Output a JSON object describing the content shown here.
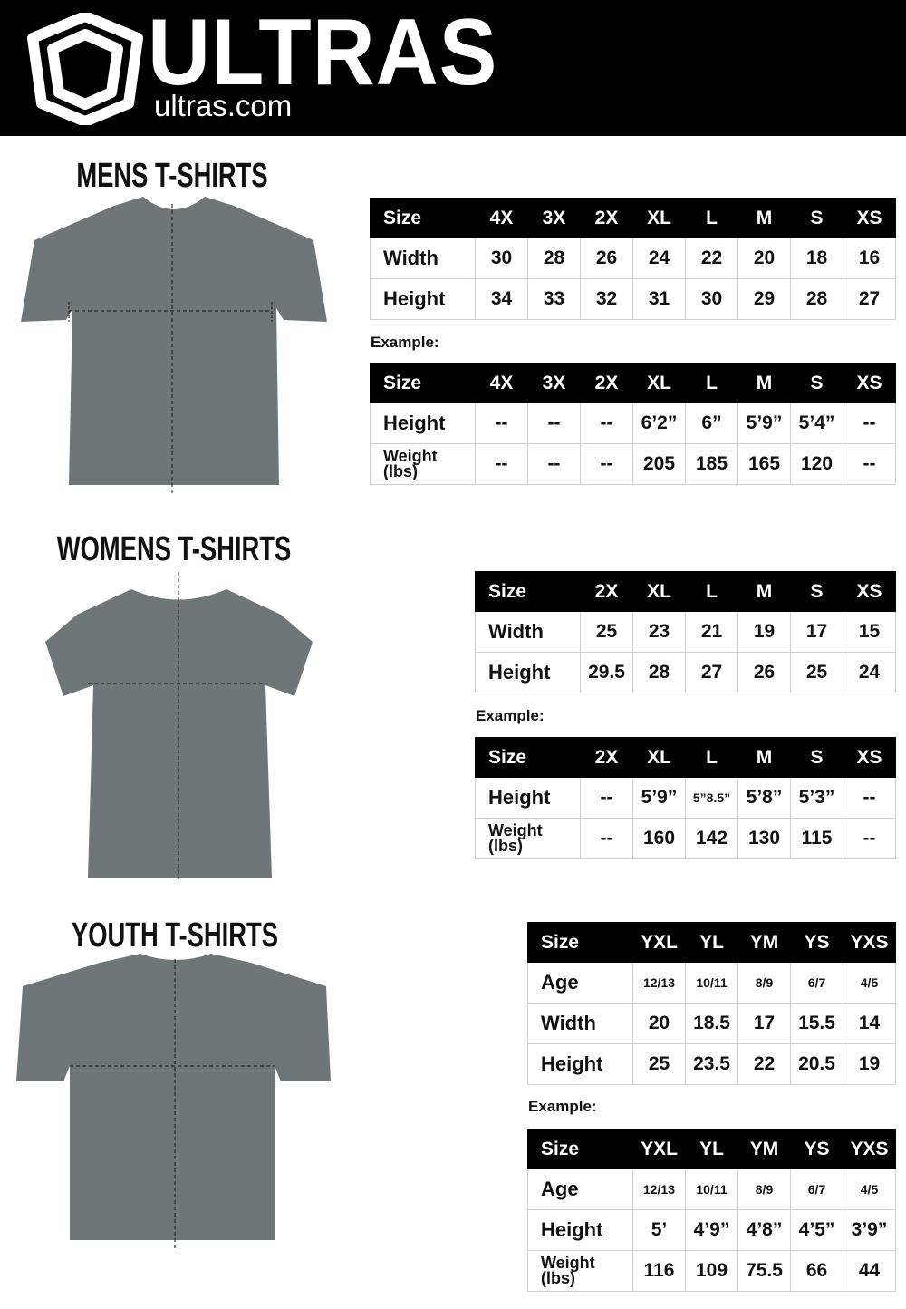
{
  "header": {
    "brand": "ULTRAS",
    "site": "ultras.com",
    "colors": {
      "background": "#000000",
      "text": "#ffffff"
    }
  },
  "sections": [
    {
      "title": "MENS T-SHIRTS",
      "example_label": "Example:",
      "measure": {
        "header": [
          "Size",
          "4X",
          "3X",
          "2X",
          "XL",
          "L",
          "M",
          "S",
          "XS"
        ],
        "rows": [
          [
            "Width",
            "30",
            "28",
            "26",
            "24",
            "22",
            "20",
            "18",
            "16"
          ],
          [
            "Height",
            "34",
            "33",
            "32",
            "31",
            "30",
            "29",
            "28",
            "27"
          ]
        ]
      },
      "example": {
        "header": [
          "Size",
          "4X",
          "3X",
          "2X",
          "XL",
          "L",
          "M",
          "S",
          "XS"
        ],
        "rows": [
          [
            "Height",
            "--",
            "--",
            "--",
            "6’2”",
            "6”",
            "5’9”",
            "5’4”",
            "--"
          ],
          [
            "Weight (lbs)",
            "--",
            "--",
            "--",
            "205",
            "185",
            "165",
            "120",
            "--"
          ]
        ]
      }
    },
    {
      "title": "WOMENS T-SHIRTS",
      "example_label": "Example:",
      "measure": {
        "header": [
          "Size",
          "2X",
          "XL",
          "L",
          "M",
          "S",
          "XS"
        ],
        "rows": [
          [
            "Width",
            "25",
            "23",
            "21",
            "19",
            "17",
            "15"
          ],
          [
            "Height",
            "29.5",
            "28",
            "27",
            "26",
            "25",
            "24"
          ]
        ]
      },
      "example": {
        "header": [
          "Size",
          "2X",
          "XL",
          "L",
          "M",
          "S",
          "XS"
        ],
        "rows": [
          [
            "Height",
            "--",
            "5’9”",
            "5”8.5”",
            "5’8”",
            "5’3”",
            "--"
          ],
          [
            "Weight (lbs)",
            "--",
            "160",
            "142",
            "130",
            "115",
            "--"
          ]
        ]
      }
    },
    {
      "title": "YOUTH T-SHIRTS",
      "example_label": "Example:",
      "measure": {
        "header": [
          "Size",
          "YXL",
          "YL",
          "YM",
          "YS",
          "YXS"
        ],
        "rows": [
          [
            "Age",
            "12/13",
            "10/11",
            "8/9",
            "6/7",
            "4/5"
          ],
          [
            "Width",
            "20",
            "18.5",
            "17",
            "15.5",
            "14"
          ],
          [
            "Height",
            "25",
            "23.5",
            "22",
            "20.5",
            "19"
          ]
        ]
      },
      "example": {
        "header": [
          "Size",
          "YXL",
          "YL",
          "YM",
          "YS",
          "YXS"
        ],
        "rows": [
          [
            "Age",
            "12/13",
            "10/11",
            "8/9",
            "6/7",
            "4/5"
          ],
          [
            "Height",
            "5’",
            "4’9”",
            "4’8”",
            "4’5”",
            "3’9”"
          ],
          [
            "Weight (lbs)",
            "116",
            "109",
            "75.5",
            "66",
            "44"
          ]
        ]
      }
    }
  ],
  "shirt_color": "#6f7679"
}
